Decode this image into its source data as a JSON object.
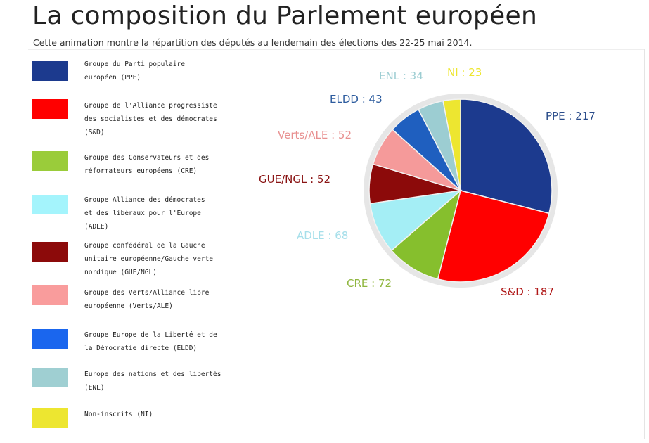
{
  "page": {
    "title": "La composition du Parlement européen",
    "subtitle": "Cette animation montre la répartition des députés au lendemain des élections des 22-25 mai 2014."
  },
  "legend": [
    {
      "text": "Groupe du Parti populaire\neuropéen (PPE)",
      "color": "#1c3a8e"
    },
    {
      "text": "Groupe de l'Alliance progressiste\ndes socialistes et des démocrates\n(S&D)",
      "color": "#ff0000"
    },
    {
      "text": "Groupe des Conservateurs et des\nréformateurs européens (CRE)",
      "color": "#9acc3a"
    },
    {
      "text": "Groupe Alliance des démocrates\net des libéraux pour l'Europe\n(ADLE)",
      "color": "#a4f4fc"
    },
    {
      "text": "Groupe confédéral de la Gauche\nunitaire européenne/Gauche verte\nnordique (GUE/NGL)",
      "color": "#8c0a0a"
    },
    {
      "text": "Groupe des Verts/Alliance libre\neuropéenne (Verts/ALE)",
      "color": "#f99c9c"
    },
    {
      "text": "Groupe Europe de la Liberté et de\nla Démocratie directe (ELDD)",
      "color": "#1a66ee"
    },
    {
      "text": "Europe des nations et des libertés\n(ENL)",
      "color": "#9fcfd2"
    },
    {
      "text": "Non-inscrits (NI)",
      "color": "#ede630"
    }
  ],
  "chart_data": {
    "type": "pie",
    "title": "",
    "start": "12 o'clock, clockwise",
    "slices": [
      {
        "key": "PPE",
        "label": "PPE : 217",
        "value": 217,
        "color": "#1c3a8e",
        "label_color": "#2a4c8a"
      },
      {
        "key": "S&D",
        "label": "S&D : 187",
        "value": 187,
        "color": "#ff0000",
        "label_color": "#b01818"
      },
      {
        "key": "CRE",
        "label": "CRE : 72",
        "value": 72,
        "color": "#86bf2d",
        "label_color": "#8fb63e"
      },
      {
        "key": "ADLE",
        "label": "ADLE : 68",
        "value": 68,
        "color": "#a4eef5",
        "label_color": "#a6dfea"
      },
      {
        "key": "GUE/NGL",
        "label": "GUE/NGL : 52",
        "value": 52,
        "color": "#8c0a0a",
        "label_color": "#8a1414"
      },
      {
        "key": "Verts/ALE",
        "label": "Verts/ALE : 52",
        "value": 52,
        "color": "#f59a9a",
        "label_color": "#e89090"
      },
      {
        "key": "ELDD",
        "label": "ELDD : 43",
        "value": 43,
        "color": "#1f5fbf",
        "label_color": "#2d5c9e"
      },
      {
        "key": "ENL",
        "label": "ENL : 34",
        "value": 34,
        "color": "#9ccdd2",
        "label_color": "#9ccdd2"
      },
      {
        "key": "NI",
        "label": "NI : 23",
        "value": 23,
        "color": "#ede630",
        "label_color": "#ede630"
      }
    ]
  }
}
